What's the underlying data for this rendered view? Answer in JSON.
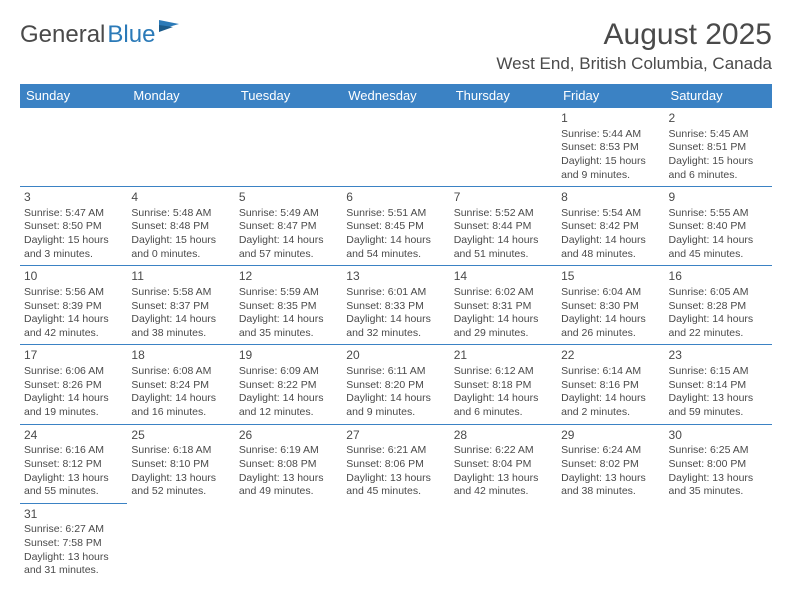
{
  "logo": {
    "part1": "General",
    "part2": "Blue"
  },
  "title": "August 2025",
  "location": "West End, British Columbia, Canada",
  "colors": {
    "header_bg": "#3b82c4",
    "header_text": "#ffffff",
    "border": "#3b82c4",
    "text": "#4a4a4a",
    "accent": "#2b7ab8",
    "page_bg": "#ffffff"
  },
  "weekdays": [
    "Sunday",
    "Monday",
    "Tuesday",
    "Wednesday",
    "Thursday",
    "Friday",
    "Saturday"
  ],
  "weeks": [
    [
      null,
      null,
      null,
      null,
      null,
      {
        "n": "1",
        "sr": "Sunrise: 5:44 AM",
        "ss": "Sunset: 8:53 PM",
        "d1": "Daylight: 15 hours",
        "d2": "and 9 minutes."
      },
      {
        "n": "2",
        "sr": "Sunrise: 5:45 AM",
        "ss": "Sunset: 8:51 PM",
        "d1": "Daylight: 15 hours",
        "d2": "and 6 minutes."
      }
    ],
    [
      {
        "n": "3",
        "sr": "Sunrise: 5:47 AM",
        "ss": "Sunset: 8:50 PM",
        "d1": "Daylight: 15 hours",
        "d2": "and 3 minutes."
      },
      {
        "n": "4",
        "sr": "Sunrise: 5:48 AM",
        "ss": "Sunset: 8:48 PM",
        "d1": "Daylight: 15 hours",
        "d2": "and 0 minutes."
      },
      {
        "n": "5",
        "sr": "Sunrise: 5:49 AM",
        "ss": "Sunset: 8:47 PM",
        "d1": "Daylight: 14 hours",
        "d2": "and 57 minutes."
      },
      {
        "n": "6",
        "sr": "Sunrise: 5:51 AM",
        "ss": "Sunset: 8:45 PM",
        "d1": "Daylight: 14 hours",
        "d2": "and 54 minutes."
      },
      {
        "n": "7",
        "sr": "Sunrise: 5:52 AM",
        "ss": "Sunset: 8:44 PM",
        "d1": "Daylight: 14 hours",
        "d2": "and 51 minutes."
      },
      {
        "n": "8",
        "sr": "Sunrise: 5:54 AM",
        "ss": "Sunset: 8:42 PM",
        "d1": "Daylight: 14 hours",
        "d2": "and 48 minutes."
      },
      {
        "n": "9",
        "sr": "Sunrise: 5:55 AM",
        "ss": "Sunset: 8:40 PM",
        "d1": "Daylight: 14 hours",
        "d2": "and 45 minutes."
      }
    ],
    [
      {
        "n": "10",
        "sr": "Sunrise: 5:56 AM",
        "ss": "Sunset: 8:39 PM",
        "d1": "Daylight: 14 hours",
        "d2": "and 42 minutes."
      },
      {
        "n": "11",
        "sr": "Sunrise: 5:58 AM",
        "ss": "Sunset: 8:37 PM",
        "d1": "Daylight: 14 hours",
        "d2": "and 38 minutes."
      },
      {
        "n": "12",
        "sr": "Sunrise: 5:59 AM",
        "ss": "Sunset: 8:35 PM",
        "d1": "Daylight: 14 hours",
        "d2": "and 35 minutes."
      },
      {
        "n": "13",
        "sr": "Sunrise: 6:01 AM",
        "ss": "Sunset: 8:33 PM",
        "d1": "Daylight: 14 hours",
        "d2": "and 32 minutes."
      },
      {
        "n": "14",
        "sr": "Sunrise: 6:02 AM",
        "ss": "Sunset: 8:31 PM",
        "d1": "Daylight: 14 hours",
        "d2": "and 29 minutes."
      },
      {
        "n": "15",
        "sr": "Sunrise: 6:04 AM",
        "ss": "Sunset: 8:30 PM",
        "d1": "Daylight: 14 hours",
        "d2": "and 26 minutes."
      },
      {
        "n": "16",
        "sr": "Sunrise: 6:05 AM",
        "ss": "Sunset: 8:28 PM",
        "d1": "Daylight: 14 hours",
        "d2": "and 22 minutes."
      }
    ],
    [
      {
        "n": "17",
        "sr": "Sunrise: 6:06 AM",
        "ss": "Sunset: 8:26 PM",
        "d1": "Daylight: 14 hours",
        "d2": "and 19 minutes."
      },
      {
        "n": "18",
        "sr": "Sunrise: 6:08 AM",
        "ss": "Sunset: 8:24 PM",
        "d1": "Daylight: 14 hours",
        "d2": "and 16 minutes."
      },
      {
        "n": "19",
        "sr": "Sunrise: 6:09 AM",
        "ss": "Sunset: 8:22 PM",
        "d1": "Daylight: 14 hours",
        "d2": "and 12 minutes."
      },
      {
        "n": "20",
        "sr": "Sunrise: 6:11 AM",
        "ss": "Sunset: 8:20 PM",
        "d1": "Daylight: 14 hours",
        "d2": "and 9 minutes."
      },
      {
        "n": "21",
        "sr": "Sunrise: 6:12 AM",
        "ss": "Sunset: 8:18 PM",
        "d1": "Daylight: 14 hours",
        "d2": "and 6 minutes."
      },
      {
        "n": "22",
        "sr": "Sunrise: 6:14 AM",
        "ss": "Sunset: 8:16 PM",
        "d1": "Daylight: 14 hours",
        "d2": "and 2 minutes."
      },
      {
        "n": "23",
        "sr": "Sunrise: 6:15 AM",
        "ss": "Sunset: 8:14 PM",
        "d1": "Daylight: 13 hours",
        "d2": "and 59 minutes."
      }
    ],
    [
      {
        "n": "24",
        "sr": "Sunrise: 6:16 AM",
        "ss": "Sunset: 8:12 PM",
        "d1": "Daylight: 13 hours",
        "d2": "and 55 minutes."
      },
      {
        "n": "25",
        "sr": "Sunrise: 6:18 AM",
        "ss": "Sunset: 8:10 PM",
        "d1": "Daylight: 13 hours",
        "d2": "and 52 minutes."
      },
      {
        "n": "26",
        "sr": "Sunrise: 6:19 AM",
        "ss": "Sunset: 8:08 PM",
        "d1": "Daylight: 13 hours",
        "d2": "and 49 minutes."
      },
      {
        "n": "27",
        "sr": "Sunrise: 6:21 AM",
        "ss": "Sunset: 8:06 PM",
        "d1": "Daylight: 13 hours",
        "d2": "and 45 minutes."
      },
      {
        "n": "28",
        "sr": "Sunrise: 6:22 AM",
        "ss": "Sunset: 8:04 PM",
        "d1": "Daylight: 13 hours",
        "d2": "and 42 minutes."
      },
      {
        "n": "29",
        "sr": "Sunrise: 6:24 AM",
        "ss": "Sunset: 8:02 PM",
        "d1": "Daylight: 13 hours",
        "d2": "and 38 minutes."
      },
      {
        "n": "30",
        "sr": "Sunrise: 6:25 AM",
        "ss": "Sunset: 8:00 PM",
        "d1": "Daylight: 13 hours",
        "d2": "and 35 minutes."
      }
    ],
    [
      {
        "n": "31",
        "sr": "Sunrise: 6:27 AM",
        "ss": "Sunset: 7:58 PM",
        "d1": "Daylight: 13 hours",
        "d2": "and 31 minutes."
      },
      null,
      null,
      null,
      null,
      null,
      null
    ]
  ]
}
